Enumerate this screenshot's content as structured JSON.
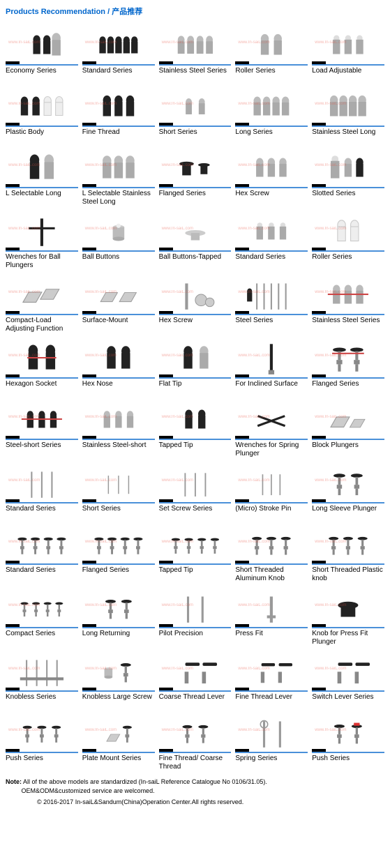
{
  "header": {
    "en": "Products Recommendation",
    "sep": " / ",
    "cn": "产品推荐"
  },
  "watermark": "www.In-saiL.com",
  "accent_color": "#4a90d9",
  "products": [
    {
      "label": "Economy Series",
      "icon": "plungers-3-black-steel"
    },
    {
      "label": "Standard Series",
      "icon": "plungers-5-black"
    },
    {
      "label": "Stainless Steel Series",
      "icon": "plungers-4-steel"
    },
    {
      "label": "Roller Series",
      "icon": "plungers-2-steel"
    },
    {
      "label": "Load Adjustable",
      "icon": "plungers-3-steel-ball"
    },
    {
      "label": "Plastic Body",
      "icon": "plungers-4-mixed"
    },
    {
      "label": "Fine Thread",
      "icon": "plungers-3-black"
    },
    {
      "label": "Short Series",
      "icon": "plungers-2-short"
    },
    {
      "label": "Long Series",
      "icon": "plungers-4-tall"
    },
    {
      "label": "Stainless Steel Long",
      "icon": "plungers-4-steel-tall"
    },
    {
      "label": "L Selectable Long",
      "icon": "plungers-2-tall-mixed"
    },
    {
      "label": "L Selectable Stainless Steel Long",
      "icon": "plungers-3-steel-tall"
    },
    {
      "label": "Flanged Series",
      "icon": "flanged-2"
    },
    {
      "label": "Hex Screw",
      "icon": "hex-screw-3"
    },
    {
      "label": "Slotted Series",
      "icon": "slotted-3"
    },
    {
      "label": "Wrenches for Ball Plungers",
      "icon": "wrench-t"
    },
    {
      "label": "Ball Buttons",
      "icon": "ball-button"
    },
    {
      "label": "Ball Buttons-Tapped",
      "icon": "ball-button-flat"
    },
    {
      "label": "Standard Series",
      "icon": "ball-std-3"
    },
    {
      "label": "Roller Series",
      "icon": "roller-white-2"
    },
    {
      "label": "Compact-Load Adjusting Function",
      "icon": "compact-block"
    },
    {
      "label": "Surface-Mount",
      "icon": "surface-mount"
    },
    {
      "label": "Hex Screw",
      "icon": "hex-assembly"
    },
    {
      "label": "Steel Series",
      "icon": "steel-pins"
    },
    {
      "label": "Stainless Steel Series",
      "icon": "steel-spring-3"
    },
    {
      "label": "Hexagon Socket",
      "icon": "hex-socket-2"
    },
    {
      "label": "Hex Nose",
      "icon": "hex-nose-2"
    },
    {
      "label": "Flat Tip",
      "icon": "flat-tip-2"
    },
    {
      "label": "For Inclined Surface",
      "icon": "inclined-1"
    },
    {
      "label": "Flanged Series",
      "icon": "flanged-tall-2"
    },
    {
      "label": "Steel-short Series",
      "icon": "steel-short-3"
    },
    {
      "label": "Stainless Steel-short",
      "icon": "stainless-short-3"
    },
    {
      "label": "Tapped Tip",
      "icon": "tapped-tip-2"
    },
    {
      "label": "Wrenches for Spring Plunger",
      "icon": "wrench-cross"
    },
    {
      "label": "Block Plungers",
      "icon": "block-2"
    },
    {
      "label": "Standard Series",
      "icon": "pins-thin-3"
    },
    {
      "label": "Short Series",
      "icon": "pins-short-3"
    },
    {
      "label": "Set Screw Series",
      "icon": "set-screw-3"
    },
    {
      "label": "(Micro) Stroke Pin",
      "icon": "micro-pin-3"
    },
    {
      "label": "Long Sleeve Plunger",
      "icon": "long-sleeve-2"
    },
    {
      "label": "Standard Series",
      "icon": "knob-std-4"
    },
    {
      "label": "Flanged Series",
      "icon": "knob-flanged-4"
    },
    {
      "label": "Tapped Tip",
      "icon": "knob-tapped-4"
    },
    {
      "label": "Short Threaded Aluminum Knob",
      "icon": "knob-alu-3"
    },
    {
      "label": "Short Threaded Plastic knob",
      "icon": "knob-plastic-3"
    },
    {
      "label": "Compact Series",
      "icon": "knob-compact-4"
    },
    {
      "label": "Long Returning",
      "icon": "knob-long-2"
    },
    {
      "label": "Pilot Precision",
      "icon": "pilot-2"
    },
    {
      "label": "Press Fit",
      "icon": "press-fit-1"
    },
    {
      "label": "Knob for Press Fit Plunger",
      "icon": "press-knob-1"
    },
    {
      "label": "Knobless Series",
      "icon": "knobless-4"
    },
    {
      "label": "Knobless Large Screw",
      "icon": "knobless-large-2"
    },
    {
      "label": "Coarse Thread Lever",
      "icon": "lever-coarse-2"
    },
    {
      "label": "Fine Thread Lever",
      "icon": "lever-fine-2"
    },
    {
      "label": "Switch Lever Series",
      "icon": "lever-switch-2"
    },
    {
      "label": "Push Series",
      "icon": "push-3"
    },
    {
      "label": "Plate Mount Series",
      "icon": "plate-mount-2"
    },
    {
      "label": "Fine Thread/ Coarse Thread",
      "icon": "thread-2"
    },
    {
      "label": "Spring Series",
      "icon": "spring-pin-2"
    },
    {
      "label": "Push Series",
      "icon": "push-red-2"
    }
  ],
  "footer": {
    "note_label": "Note:",
    "note_line1": "All of the above models are standardized (In-saiL Reference Catalogue No 0106/31.05).",
    "note_line2": "OEM&ODM&customized service are welcomed.",
    "copyright": "© 2016-2017 In-saiL&Sandum(China)Operation Center.All rights reserved."
  }
}
